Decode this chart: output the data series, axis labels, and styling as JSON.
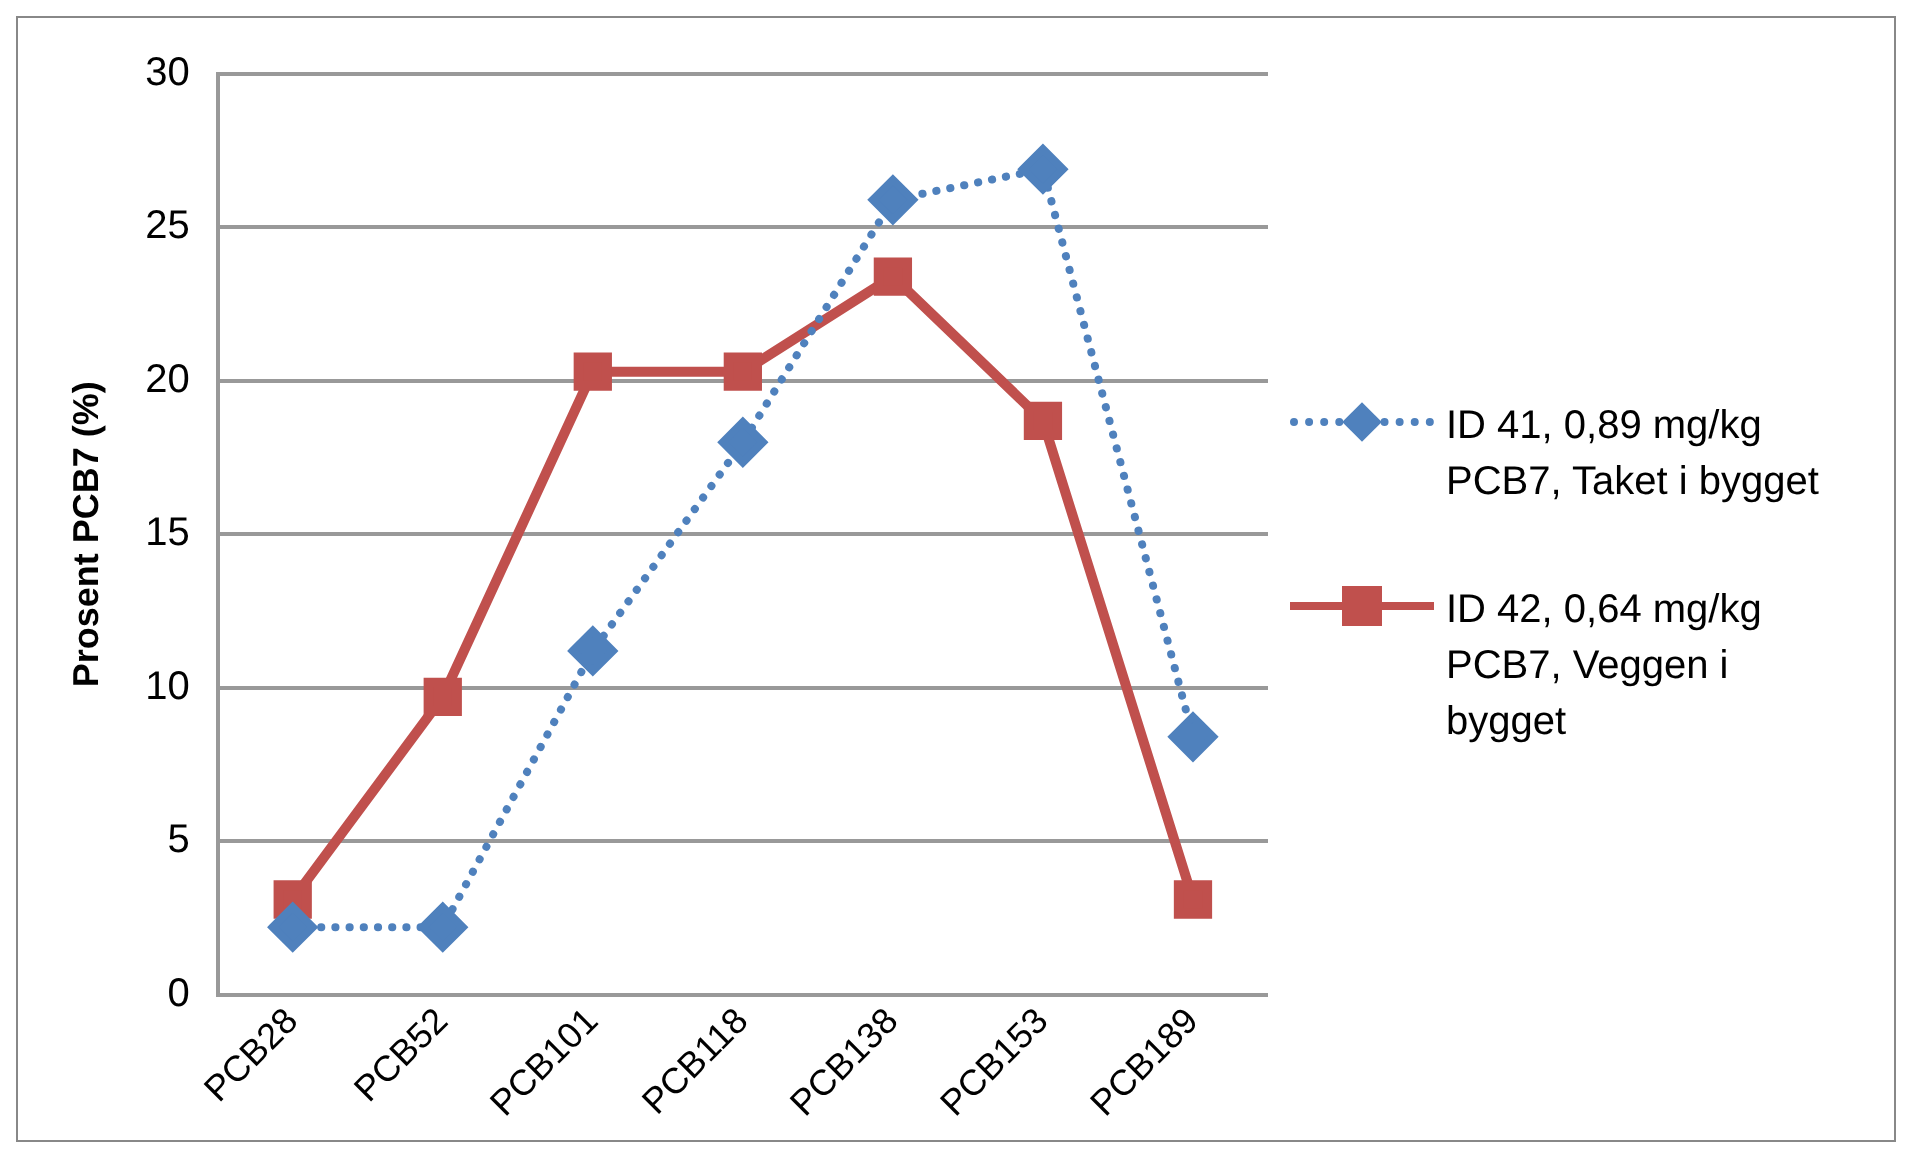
{
  "chart_data": {
    "type": "line",
    "ylabel": "Prosent PCB7 (%)",
    "categories": [
      "PCB28",
      "PCB52",
      "PCB101",
      "PCB118",
      "PCB138",
      "PCB153",
      "PCB189"
    ],
    "series": [
      {
        "name": "ID 41, 0,89 mg/kg PCB7, Taket i bygget",
        "color": "#4f81bd",
        "marker": "diamond",
        "line_style": "dotted",
        "values": [
          2.2,
          2.2,
          11.2,
          18.0,
          25.9,
          26.9,
          8.4
        ]
      },
      {
        "name": "ID 42, 0,64 mg/kg PCB7, Veggen i bygget",
        "color": "#c0504d",
        "marker": "square",
        "line_style": "solid",
        "values": [
          3.1,
          9.7,
          20.3,
          20.3,
          23.4,
          18.7,
          3.1
        ]
      }
    ],
    "ylim": [
      0,
      30
    ],
    "yticks": [
      0,
      5,
      10,
      15,
      20,
      25,
      30
    ],
    "grid": "y",
    "legend": "right"
  }
}
